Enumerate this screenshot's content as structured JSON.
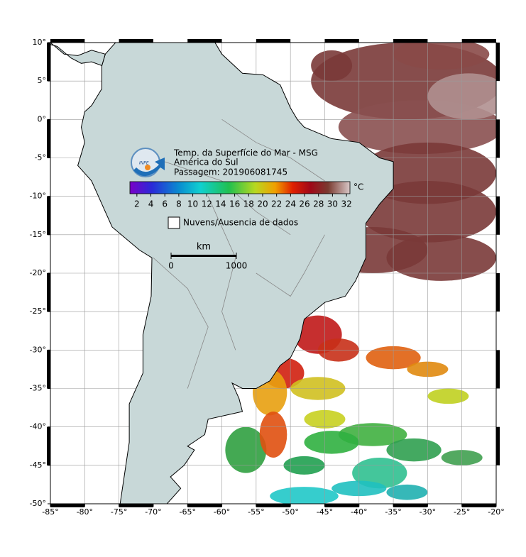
{
  "header": {
    "title": "Temp. da Superfície do Mar - MSG",
    "region": "América do Sul",
    "pass": "Passagem: 201906081745",
    "logo": "INPE"
  },
  "map": {
    "xlim": [
      -85,
      -20
    ],
    "ylim": [
      -50,
      10
    ],
    "grid": true,
    "xticks": [
      {
        "value": -85,
        "label": "-85°"
      },
      {
        "value": -80,
        "label": "-80°"
      },
      {
        "value": -75,
        "label": "-75°"
      },
      {
        "value": -70,
        "label": "-70°"
      },
      {
        "value": -65,
        "label": "-65°"
      },
      {
        "value": -60,
        "label": "-60°"
      },
      {
        "value": -55,
        "label": "-55°"
      },
      {
        "value": -50,
        "label": "-50°"
      },
      {
        "value": -45,
        "label": "-45°"
      },
      {
        "value": -40,
        "label": "-40°"
      },
      {
        "value": -35,
        "label": "-35°"
      },
      {
        "value": -30,
        "label": "-30°"
      },
      {
        "value": -25,
        "label": "-25°"
      },
      {
        "value": -20,
        "label": "-20°"
      }
    ],
    "yticks": [
      {
        "value": 10,
        "label": "10°"
      },
      {
        "value": 5,
        "label": "5°"
      },
      {
        "value": 0,
        "label": "0°"
      },
      {
        "value": -5,
        "label": "-5°"
      },
      {
        "value": -10,
        "label": "-10°"
      },
      {
        "value": -15,
        "label": "-15°"
      },
      {
        "value": -20,
        "label": "-20°"
      },
      {
        "value": -25,
        "label": "-25°"
      },
      {
        "value": -30,
        "label": "-30°"
      },
      {
        "value": -35,
        "label": "-35°"
      },
      {
        "value": -40,
        "label": "-40°"
      },
      {
        "value": -45,
        "label": "-45°"
      },
      {
        "value": -50,
        "label": "-50°"
      }
    ]
  },
  "colorbar": {
    "lim": [
      1,
      32.5
    ],
    "ticks": [
      2,
      4,
      6,
      8,
      10,
      12,
      14,
      16,
      18,
      20,
      22,
      24,
      26,
      28,
      30,
      32
    ],
    "unit": "°C"
  },
  "legend": {
    "label": "Nuvens/Ausencia de dados"
  },
  "scale_bar": {
    "unit": "km",
    "ticks": [
      0,
      1000
    ]
  }
}
